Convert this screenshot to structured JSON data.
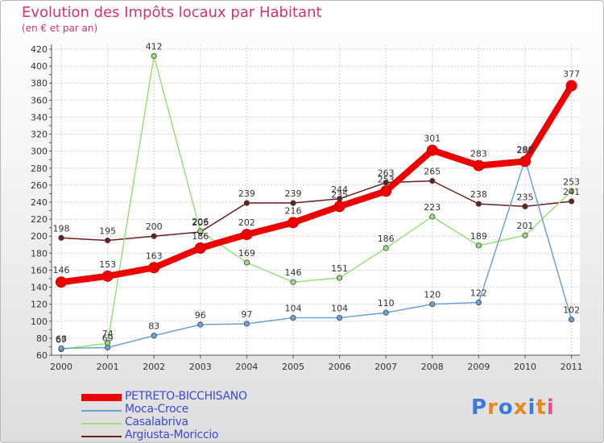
{
  "chart_data": {
    "type": "line",
    "title": "Evolution des Impôts locaux par Habitant",
    "subtitle": "(en € et par an)",
    "x": [
      "2000",
      "2001",
      "2002",
      "2003",
      "2004",
      "2005",
      "2006",
      "2007",
      "2008",
      "2009",
      "2010",
      "2011"
    ],
    "ylim": [
      60,
      420
    ],
    "yticks": [
      "60",
      "80",
      "100",
      "120",
      "140",
      "160",
      "180",
      "200",
      "220",
      "240",
      "260",
      "280",
      "300",
      "320",
      "340",
      "360",
      "380",
      "400",
      "420"
    ],
    "grid": true,
    "series": [
      {
        "name": "Argiusta-Moriccio",
        "color": "#6b1e1e",
        "values": [
          198,
          195,
          200,
          205,
          239,
          239,
          244,
          263,
          265,
          238,
          235,
          241
        ],
        "labels": [
          "198",
          "195",
          "200",
          "205",
          "239",
          "239",
          "244",
          "263",
          "265",
          "238",
          "235",
          "241"
        ]
      },
      {
        "name": "Casalabriva",
        "color": "#99e07a",
        "values": [
          67,
          74,
          412,
          206,
          169,
          146,
          151,
          186,
          223,
          189,
          201,
          253
        ],
        "labels": [
          "67",
          "74",
          "412",
          "206",
          "169",
          "146",
          "151",
          "186",
          "223",
          "189",
          "201",
          "253"
        ]
      },
      {
        "name": "Moca-Croce",
        "color": "#6ba3d6",
        "values": [
          68,
          69,
          83,
          96,
          97,
          104,
          104,
          110,
          120,
          122,
          290,
          102
        ],
        "labels": [
          "68",
          "69",
          "83",
          "96",
          "97",
          "104",
          "104",
          "110",
          "120",
          "122",
          "290",
          "102"
        ]
      },
      {
        "name": "PETRETO-BICCHISANO",
        "color": "#ee0000",
        "values": [
          146,
          153,
          163,
          186,
          202,
          216,
          235,
          253,
          301,
          283,
          288,
          377
        ],
        "labels": [
          "146",
          "153",
          "163",
          "186",
          "202",
          "216",
          "235",
          "253",
          "301",
          "283",
          "288",
          "377"
        ]
      }
    ],
    "legend_order": [
      "PETRETO-BICCHISANO",
      "Moca-Croce",
      "Casalabriva",
      "Argiusta-Moriccio"
    ]
  },
  "logo": {
    "letters": [
      "P",
      "r",
      "o",
      "x",
      "i",
      "t",
      "i"
    ],
    "colors": [
      "#3b7bd6",
      "#e8871e",
      "#3b7bd6",
      "#e8871e",
      "#3b7bd6",
      "#e8871e",
      "#e84f8e"
    ]
  }
}
